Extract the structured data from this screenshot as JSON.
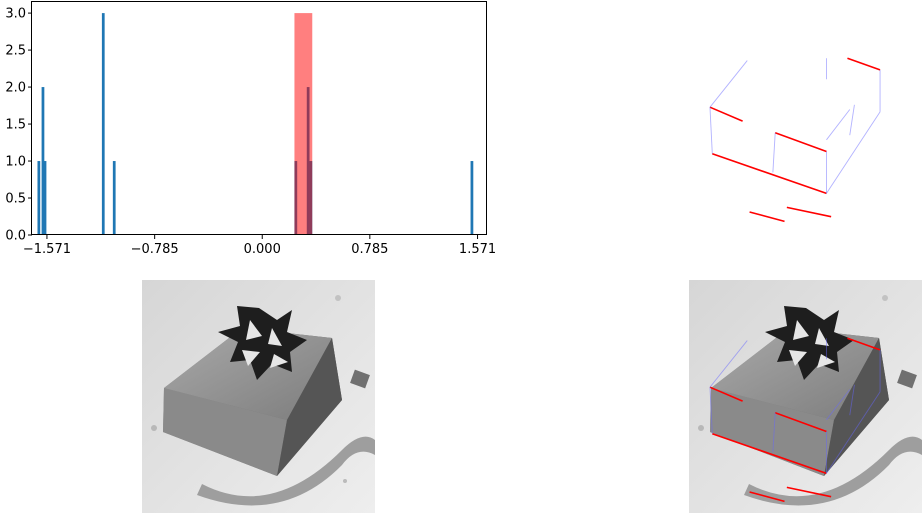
{
  "chart_data": [
    {
      "type": "bar",
      "title": "",
      "xlabel": "",
      "ylabel": "",
      "xlim": [
        -1.68,
        1.64
      ],
      "ylim": [
        0,
        3.15
      ],
      "xticks": [
        -1.571,
        -0.785,
        0.0,
        0.785,
        1.571
      ],
      "xtick_labels": [
        "−1.571",
        "−0.785",
        "0.000",
        "0.785",
        "1.571"
      ],
      "yticks": [
        0.0,
        0.5,
        1.0,
        1.5,
        2.0,
        2.5,
        3.0
      ],
      "ytick_labels": [
        "0.0",
        "0.5",
        "1.0",
        "1.5",
        "2.0",
        "2.5",
        "3.0"
      ],
      "grid": false,
      "series": [
        {
          "bin_width": 0.02,
          "color": "#1f77b4",
          "x": [
            -1.63,
            -1.6,
            -1.585,
            -1.16,
            -1.08,
            0.245,
            0.335,
            0.355,
            1.53
          ],
          "values": [
            1,
            2,
            1,
            3,
            1,
            1,
            2,
            1,
            1
          ]
        },
        {
          "bin_width": 0.13,
          "color": "#ff0000",
          "alpha": 0.5,
          "x": [
            0.3
          ],
          "values": [
            3
          ]
        }
      ]
    },
    {
      "type": "line",
      "title": "",
      "series": [
        {
          "color": "#ff0000",
          "segments": [
            [
              [
                0.09,
                0.46
              ],
              [
                0.23,
                0.52
              ]
            ],
            [
              [
                0.68,
                0.25
              ],
              [
                0.82,
                0.3
              ]
            ],
            [
              [
                0.37,
                0.57
              ],
              [
                0.59,
                0.65
              ]
            ],
            [
              [
                0.1,
                0.66
              ],
              [
                0.59,
                0.83
              ]
            ],
            [
              [
                0.26,
                0.91
              ],
              [
                0.41,
                0.95
              ]
            ],
            [
              [
                0.42,
                0.89
              ],
              [
                0.61,
                0.93
              ]
            ]
          ]
        },
        {
          "color": "#6666ff",
          "alpha": 0.5,
          "segments": [
            [
              [
                0.09,
                0.46
              ],
              [
                0.25,
                0.26
              ]
            ],
            [
              [
                0.09,
                0.46
              ],
              [
                0.1,
                0.66
              ]
            ],
            [
              [
                0.59,
                0.65
              ],
              [
                0.59,
                0.83
              ]
            ],
            [
              [
                0.37,
                0.57
              ],
              [
                0.36,
                0.74
              ]
            ],
            [
              [
                0.82,
                0.3
              ],
              [
                0.82,
                0.48
              ]
            ],
            [
              [
                0.82,
                0.48
              ],
              [
                0.59,
                0.83
              ]
            ],
            [
              [
                0.69,
                0.58
              ],
              [
                0.71,
                0.45
              ]
            ],
            [
              [
                0.59,
                0.6
              ],
              [
                0.69,
                0.47
              ]
            ],
            [
              [
                0.59,
                0.25
              ],
              [
                0.59,
                0.34
              ]
            ]
          ]
        }
      ]
    }
  ],
  "images": {
    "left": {
      "subject": "gift box with bow"
    },
    "right": {
      "subject": "gift box with bow and detected line segments overlay"
    }
  }
}
